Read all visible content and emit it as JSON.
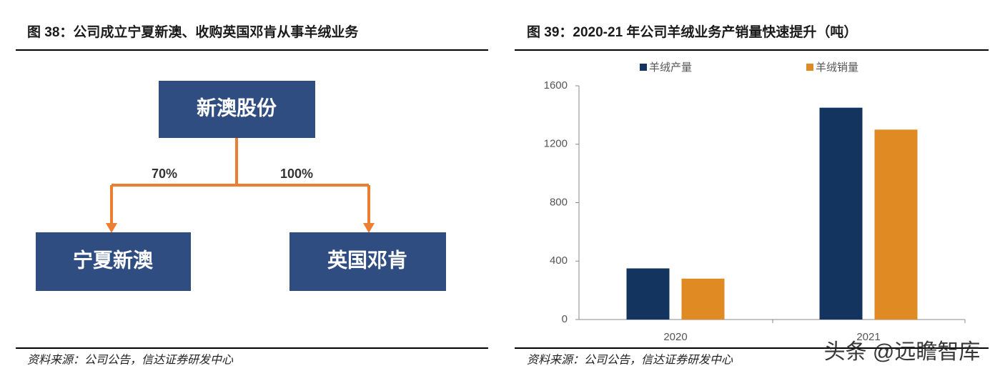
{
  "diagram": {
    "title": "图 38：公司成立宁夏新澳、收购英国邓肯从事羊绒业务",
    "nodes": [
      {
        "label": "新澳股份"
      },
      {
        "label": "宁夏新澳"
      },
      {
        "label": "英国邓肯"
      }
    ],
    "edges": [
      {
        "label": "70%"
      },
      {
        "label": "100%"
      }
    ],
    "source": "资料来源：公司公告，信达证券研发中心"
  },
  "chart_data": {
    "type": "bar",
    "title": "图 39：2020-21 年公司羊绒业务产销量快速提升（吨）",
    "categories": [
      "2020",
      "2021"
    ],
    "series": [
      {
        "name": "羊绒产量",
        "color": "#12345f",
        "values": [
          350,
          1450
        ]
      },
      {
        "name": "羊绒销量",
        "color": "#e08a24",
        "values": [
          280,
          1300
        ]
      }
    ],
    "ylim": [
      0,
      1600
    ],
    "yticks": [
      0,
      400,
      800,
      1200,
      1600
    ],
    "grid": false,
    "source": "资料来源：公司公告，信达证券研发中心"
  },
  "watermark": "头条 @远瞻智库"
}
